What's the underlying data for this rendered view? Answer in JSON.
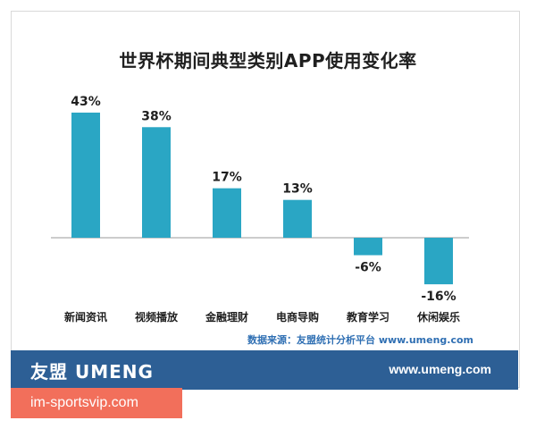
{
  "chart_data": {
    "type": "bar",
    "title": "世界杯期间典型类别APP使用变化率",
    "categories": [
      "新闻资讯",
      "视频播放",
      "金融理财",
      "电商导购",
      "教育学习",
      "休闲娱乐"
    ],
    "values": [
      43,
      38,
      17,
      13,
      -6,
      -16
    ],
    "value_labels": [
      "43%",
      "38%",
      "17%",
      "13%",
      "-6%",
      "-16%"
    ],
    "unit": "%",
    "ylim": [
      -20,
      50
    ],
    "grid": false,
    "bar_color": "#2aa6c4"
  },
  "source": "数据来源：友盟统计分析平台 www.umeng.com",
  "footer": {
    "brand": "友盟 UMENG",
    "url": "www.umeng.com"
  },
  "watermark": "im-sportsvip.com"
}
